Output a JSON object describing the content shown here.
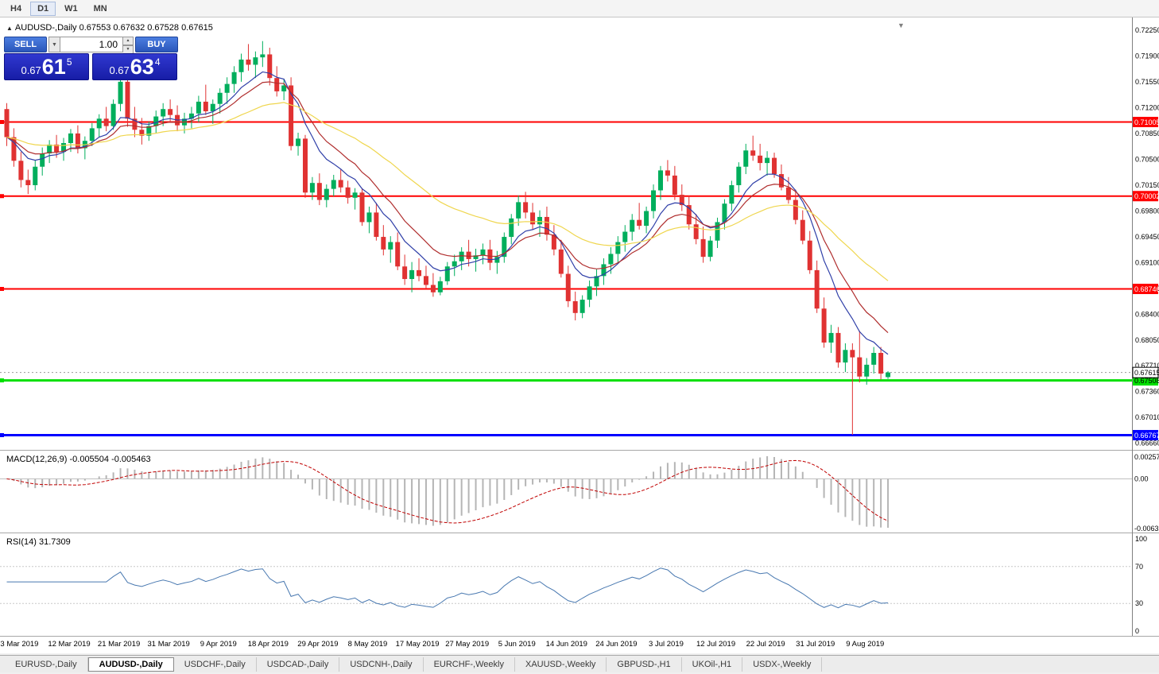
{
  "toolbar": {
    "timeframes": [
      "H4",
      "D1",
      "W1",
      "MN"
    ],
    "active": "D1"
  },
  "icons": {
    "chart_marker": "▲",
    "volume_dropdown": "▼",
    "spin_up": "▲",
    "spin_down": "▼",
    "bar_shift": "▼"
  },
  "chart": {
    "symbol": "AUDUSD-,Daily",
    "ohlc": "0.67553 0.67632 0.67528 0.67615"
  },
  "trade_panel": {
    "sell_label": "SELL",
    "buy_label": "BUY",
    "volume": "1.00",
    "sell_price": {
      "prefix": "0.67",
      "pips": "61",
      "point": "5"
    },
    "buy_price": {
      "prefix": "0.67",
      "pips": "63",
      "point": "4"
    }
  },
  "tabs": [
    {
      "label": "EURUSD-,Daily",
      "active": false
    },
    {
      "label": "AUDUSD-,Daily",
      "active": true
    },
    {
      "label": "USDCHF-,Daily",
      "active": false
    },
    {
      "label": "USDCAD-,Daily",
      "active": false
    },
    {
      "label": "USDCNH-,Daily",
      "active": false
    },
    {
      "label": "EURCHF-,Weekly",
      "active": false
    },
    {
      "label": "XAUUSD-,Weekly",
      "active": false
    },
    {
      "label": "GBPUSD-,H1",
      "active": false
    },
    {
      "label": "UKOil-,H1",
      "active": false
    },
    {
      "label": "USDX-,Weekly",
      "active": false
    }
  ],
  "chart_data": {
    "type": "candlestick",
    "symbol": "AUDUSD-",
    "timeframe": "Daily",
    "colors": {
      "bull": "#00AE5C",
      "bear": "#E03232",
      "background": "#FFFFFF"
    },
    "price_axis": {
      "labels": [
        "0.72250",
        "0.71900",
        "0.71550",
        "0.71200",
        "0.70850",
        "0.70500",
        "0.70150",
        "0.69800",
        "0.69450",
        "0.69100",
        "0.68750",
        "0.68400",
        "0.68050",
        "0.67710",
        "0.67360",
        "0.67010",
        "0.66660"
      ]
    },
    "levels": [
      {
        "value": 0.71005,
        "label": "0.71005",
        "color": "#FF0000",
        "text_color": "#FFFFFF",
        "width": 2
      },
      {
        "value": 0.70002,
        "label": "0.70002",
        "color": "#FF0000",
        "text_color": "#FFFFFF",
        "width": 2
      },
      {
        "value": 0.68746,
        "label": "0.68746",
        "color": "#FF0000",
        "text_color": "#FFFFFF",
        "width": 2
      },
      {
        "value": 0.67508,
        "label": "0.67508",
        "color": "#00DF00",
        "text_color": "#000000",
        "width": 3
      },
      {
        "value": 0.66767,
        "label": "0.66767",
        "color": "#0000FF",
        "text_color": "#FFFFFF",
        "width": 3
      }
    ],
    "current_price": {
      "value": 0.67615,
      "label": "0.67615"
    },
    "moving_averages": [
      {
        "name": "fast",
        "period": 8,
        "color": "#2F3FA8"
      },
      {
        "name": "medium",
        "period": 13,
        "color": "#B02E2E"
      },
      {
        "name": "slow",
        "period": 34,
        "color": "#EFD64E"
      }
    ],
    "indicators": {
      "macd": {
        "label": "MACD(12,26,9)",
        "values": "-0.005504 -0.005463",
        "scale_labels": [
          "0.002574",
          "0.00",
          "-0.00632"
        ],
        "histogram_color": "#B5B5B5",
        "signal_color": "#C00000"
      },
      "rsi": {
        "label": "RSI(14)",
        "value": "31.7309",
        "levels": [
          "100",
          "70",
          "30",
          "0"
        ],
        "line_color": "#4878B0"
      }
    },
    "date_labels": [
      {
        "i": 1,
        "t": "3 Mar 2019"
      },
      {
        "i": 8,
        "t": "12 Mar 2019"
      },
      {
        "i": 15,
        "t": "21 Mar 2019"
      },
      {
        "i": 22,
        "t": "31 Mar 2019"
      },
      {
        "i": 29,
        "t": "9 Apr 2019"
      },
      {
        "i": 36,
        "t": "18 Apr 2019"
      },
      {
        "i": 43,
        "t": "29 Apr 2019"
      },
      {
        "i": 50,
        "t": "8 May 2019"
      },
      {
        "i": 57,
        "t": "17 May 2019"
      },
      {
        "i": 64,
        "t": "27 May 2019"
      },
      {
        "i": 71,
        "t": "5 Jun 2019"
      },
      {
        "i": 78,
        "t": "14 Jun 2019"
      },
      {
        "i": 85,
        "t": "24 Jun 2019"
      },
      {
        "i": 92,
        "t": "3 Jul 2019"
      },
      {
        "i": 99,
        "t": "12 Jul 2019"
      },
      {
        "i": 106,
        "t": "22 Jul 2019"
      },
      {
        "i": 113,
        "t": "31 Jul 2019"
      },
      {
        "i": 120,
        "t": "9 Aug 2019"
      }
    ],
    "candles": [
      [
        0.7118,
        0.7126,
        0.7068,
        0.708
      ],
      [
        0.708,
        0.7092,
        0.704,
        0.7048
      ],
      [
        0.7048,
        0.706,
        0.7012,
        0.7022
      ],
      [
        0.7022,
        0.7036,
        0.7003,
        0.7015
      ],
      [
        0.7015,
        0.7049,
        0.7008,
        0.704
      ],
      [
        0.704,
        0.7066,
        0.7028,
        0.7058
      ],
      [
        0.7058,
        0.7076,
        0.7045,
        0.707
      ],
      [
        0.707,
        0.7083,
        0.7052,
        0.706
      ],
      [
        0.706,
        0.7079,
        0.7048,
        0.7072
      ],
      [
        0.7072,
        0.7091,
        0.706,
        0.7085
      ],
      [
        0.7085,
        0.7096,
        0.7058,
        0.7065
      ],
      [
        0.7065,
        0.7081,
        0.705,
        0.7075
      ],
      [
        0.7075,
        0.7099,
        0.7068,
        0.7092
      ],
      [
        0.7092,
        0.7111,
        0.708,
        0.7105
      ],
      [
        0.7105,
        0.7121,
        0.7088,
        0.7095
      ],
      [
        0.7095,
        0.7131,
        0.709,
        0.7125
      ],
      [
        0.7125,
        0.7168,
        0.7115,
        0.7155
      ],
      [
        0.7155,
        0.7166,
        0.7094,
        0.7105
      ],
      [
        0.7105,
        0.7121,
        0.708,
        0.709
      ],
      [
        0.709,
        0.7106,
        0.707,
        0.7082
      ],
      [
        0.7082,
        0.7101,
        0.7075,
        0.7095
      ],
      [
        0.7095,
        0.7116,
        0.7085,
        0.7108
      ],
      [
        0.7108,
        0.7126,
        0.7095,
        0.7118
      ],
      [
        0.7118,
        0.7131,
        0.71,
        0.711
      ],
      [
        0.711,
        0.7123,
        0.7088,
        0.7096
      ],
      [
        0.7096,
        0.7113,
        0.7085,
        0.7105
      ],
      [
        0.7105,
        0.7121,
        0.7092,
        0.7112
      ],
      [
        0.7112,
        0.7136,
        0.71,
        0.7128
      ],
      [
        0.7128,
        0.7151,
        0.711,
        0.7115
      ],
      [
        0.7115,
        0.7131,
        0.7098,
        0.7125
      ],
      [
        0.7125,
        0.7146,
        0.7112,
        0.714
      ],
      [
        0.714,
        0.7161,
        0.7125,
        0.7152
      ],
      [
        0.7152,
        0.7176,
        0.714,
        0.7168
      ],
      [
        0.7168,
        0.7193,
        0.7155,
        0.7185
      ],
      [
        0.7185,
        0.7206,
        0.717,
        0.7178
      ],
      [
        0.7178,
        0.7196,
        0.716,
        0.7188
      ],
      [
        0.7188,
        0.721,
        0.7175,
        0.7192
      ],
      [
        0.7192,
        0.7201,
        0.715,
        0.716
      ],
      [
        0.716,
        0.7176,
        0.7135,
        0.7142
      ],
      [
        0.7142,
        0.7159,
        0.713,
        0.715
      ],
      [
        0.715,
        0.7161,
        0.7062,
        0.7068
      ],
      [
        0.7068,
        0.7086,
        0.7055,
        0.7078
      ],
      [
        0.7078,
        0.7083,
        0.6998,
        0.7005
      ],
      [
        0.7005,
        0.7026,
        0.6995,
        0.7018
      ],
      [
        0.7018,
        0.7031,
        0.6988,
        0.6995
      ],
      [
        0.6995,
        0.7016,
        0.6985,
        0.701
      ],
      [
        0.701,
        0.7029,
        0.7,
        0.7022
      ],
      [
        0.7022,
        0.7036,
        0.7005,
        0.7012
      ],
      [
        0.7012,
        0.7021,
        0.699,
        0.6998
      ],
      [
        0.6998,
        0.7011,
        0.6982,
        0.7005
      ],
      [
        0.7005,
        0.7011,
        0.696,
        0.6965
      ],
      [
        0.6965,
        0.6986,
        0.695,
        0.6978
      ],
      [
        0.6978,
        0.6991,
        0.694,
        0.6945
      ],
      [
        0.6945,
        0.6961,
        0.692,
        0.6928
      ],
      [
        0.6928,
        0.6946,
        0.691,
        0.6938
      ],
      [
        0.6938,
        0.6951,
        0.69,
        0.6905
      ],
      [
        0.6905,
        0.6921,
        0.688,
        0.6888
      ],
      [
        0.6888,
        0.6911,
        0.687,
        0.69
      ],
      [
        0.69,
        0.6916,
        0.6885,
        0.6892
      ],
      [
        0.6892,
        0.6906,
        0.6875,
        0.688
      ],
      [
        0.688,
        0.6896,
        0.6864,
        0.687
      ],
      [
        0.687,
        0.6891,
        0.6866,
        0.6885
      ],
      [
        0.6885,
        0.6911,
        0.688,
        0.6905
      ],
      [
        0.6905,
        0.6921,
        0.6892,
        0.6912
      ],
      [
        0.6912,
        0.6931,
        0.69,
        0.6925
      ],
      [
        0.6925,
        0.6941,
        0.6905,
        0.6915
      ],
      [
        0.6915,
        0.6929,
        0.6898,
        0.692
      ],
      [
        0.692,
        0.6936,
        0.6908,
        0.6928
      ],
      [
        0.6928,
        0.6941,
        0.69,
        0.691
      ],
      [
        0.691,
        0.6926,
        0.6895,
        0.6918
      ],
      [
        0.6918,
        0.6951,
        0.691,
        0.6945
      ],
      [
        0.6945,
        0.6976,
        0.6935,
        0.697
      ],
      [
        0.697,
        0.7001,
        0.696,
        0.6992
      ],
      [
        0.6992,
        0.7006,
        0.697,
        0.6978
      ],
      [
        0.6978,
        0.6991,
        0.6955,
        0.6962
      ],
      [
        0.6962,
        0.6981,
        0.6945,
        0.6972
      ],
      [
        0.6972,
        0.6986,
        0.694,
        0.6948
      ],
      [
        0.6948,
        0.6961,
        0.692,
        0.6928
      ],
      [
        0.6928,
        0.6941,
        0.689,
        0.6895
      ],
      [
        0.6895,
        0.6906,
        0.685,
        0.6858
      ],
      [
        0.6858,
        0.6871,
        0.6832,
        0.6842
      ],
      [
        0.6842,
        0.6866,
        0.6835,
        0.686
      ],
      [
        0.686,
        0.6886,
        0.685,
        0.6878
      ],
      [
        0.6878,
        0.6901,
        0.6865,
        0.6892
      ],
      [
        0.6892,
        0.6916,
        0.688,
        0.6908
      ],
      [
        0.6908,
        0.6931,
        0.6895,
        0.6922
      ],
      [
        0.6922,
        0.6946,
        0.691,
        0.6938
      ],
      [
        0.6938,
        0.6961,
        0.6925,
        0.6952
      ],
      [
        0.6952,
        0.6976,
        0.694,
        0.6968
      ],
      [
        0.6968,
        0.6991,
        0.6955,
        0.696
      ],
      [
        0.696,
        0.6986,
        0.695,
        0.698
      ],
      [
        0.698,
        0.7016,
        0.697,
        0.7008
      ],
      [
        0.7008,
        0.7041,
        0.6995,
        0.7035
      ],
      [
        0.7035,
        0.7049,
        0.702,
        0.7028
      ],
      [
        0.7028,
        0.7041,
        0.6995,
        0.7002
      ],
      [
        0.7002,
        0.7016,
        0.698,
        0.6988
      ],
      [
        0.6988,
        0.7001,
        0.6955,
        0.6962
      ],
      [
        0.6962,
        0.6976,
        0.6935,
        0.6942
      ],
      [
        0.6942,
        0.6959,
        0.691,
        0.6918
      ],
      [
        0.6918,
        0.6946,
        0.6912,
        0.694
      ],
      [
        0.694,
        0.6971,
        0.693,
        0.6965
      ],
      [
        0.6965,
        0.6996,
        0.6955,
        0.699
      ],
      [
        0.699,
        0.7021,
        0.698,
        0.7015
      ],
      [
        0.7015,
        0.7046,
        0.7005,
        0.704
      ],
      [
        0.704,
        0.7071,
        0.703,
        0.7062
      ],
      [
        0.7062,
        0.7082,
        0.7048,
        0.7055
      ],
      [
        0.7055,
        0.7071,
        0.7035,
        0.7045
      ],
      [
        0.7045,
        0.7061,
        0.7028,
        0.7052
      ],
      [
        0.7052,
        0.7059,
        0.7025,
        0.703
      ],
      [
        0.703,
        0.7043,
        0.7008,
        0.7012
      ],
      [
        0.7012,
        0.7026,
        0.699,
        0.6995
      ],
      [
        0.6995,
        0.7009,
        0.6962,
        0.6968
      ],
      [
        0.6968,
        0.6981,
        0.6935,
        0.694
      ],
      [
        0.694,
        0.6953,
        0.6895,
        0.69
      ],
      [
        0.69,
        0.6913,
        0.6842,
        0.6848
      ],
      [
        0.6848,
        0.6863,
        0.6795,
        0.6802
      ],
      [
        0.6802,
        0.6826,
        0.6788,
        0.6815
      ],
      [
        0.6815,
        0.6823,
        0.6768,
        0.6775
      ],
      [
        0.6775,
        0.6801,
        0.6762,
        0.6792
      ],
      [
        0.6792,
        0.6801,
        0.6677,
        0.6782
      ],
      [
        0.6782,
        0.6818,
        0.6748,
        0.6756
      ],
      [
        0.6756,
        0.6781,
        0.6745,
        0.6772
      ],
      [
        0.6772,
        0.6796,
        0.676,
        0.6788
      ],
      [
        0.6788,
        0.6796,
        0.6752,
        0.676
      ],
      [
        0.67553,
        0.67632,
        0.67528,
        0.67615
      ]
    ]
  }
}
